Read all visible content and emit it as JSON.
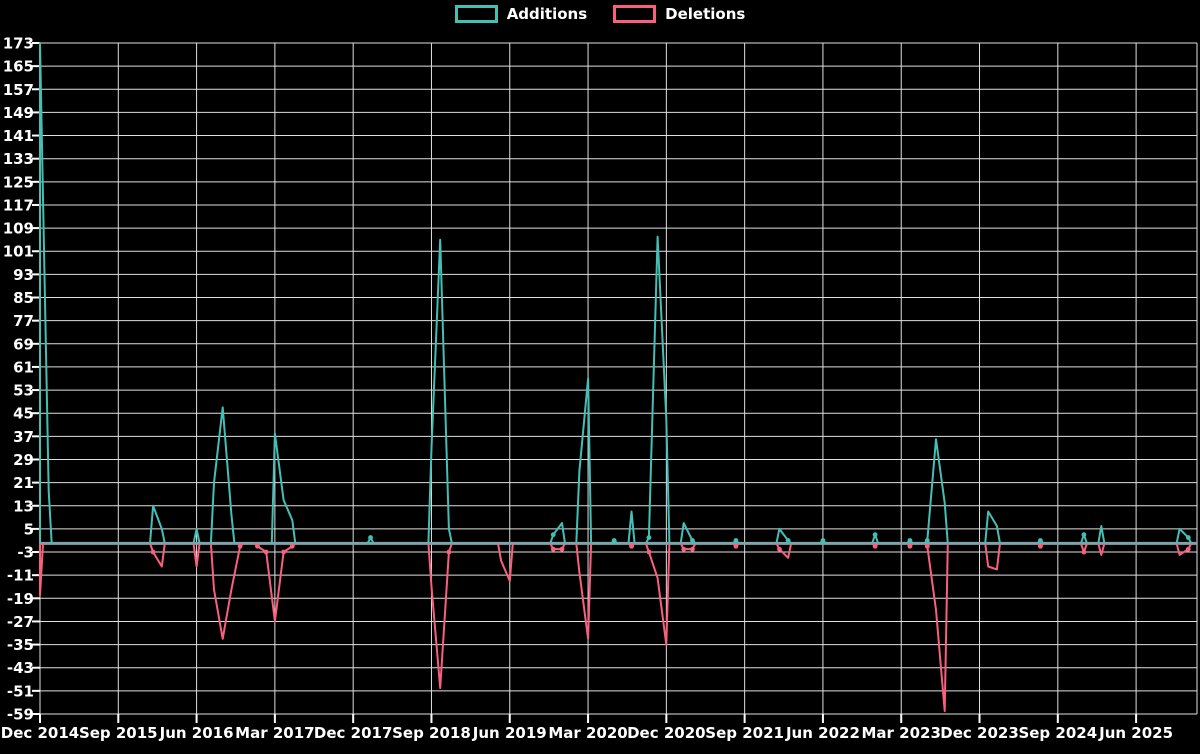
{
  "chart_data": {
    "type": "line",
    "title": "",
    "legend_position": "top-center",
    "grid": true,
    "background": "#000000",
    "grid_color": "#ffffff",
    "baseline_color": "#7FA3AB",
    "x_axis": {
      "unit": "month",
      "start": "2014-12",
      "end": "2026-01",
      "total_months": 133,
      "tick_interval_months": 9,
      "tick_labels": [
        "Dec 2014",
        "Sep 2015",
        "Jun 2016",
        "Mar 2017",
        "Dec 2017",
        "Sep 2018",
        "Jun 2019",
        "Mar 2020",
        "Dec 2020",
        "Sep 2021",
        "Jun 2022",
        "Mar 2023",
        "Dec 2023",
        "Sep 2024",
        "Jun 2025"
      ]
    },
    "y_axis": {
      "min": -59,
      "max": 173,
      "tick_step": 8,
      "tick_labels": [
        173,
        165,
        157,
        149,
        141,
        133,
        125,
        117,
        109,
        101,
        93,
        85,
        77,
        69,
        61,
        53,
        45,
        37,
        29,
        21,
        13,
        5,
        -3,
        -11,
        -19,
        -27,
        -35,
        -43,
        -51,
        -59
      ]
    },
    "series": [
      {
        "name": "Additions",
        "color": "#44BFB6",
        "points": [
          [
            "2014-12",
            173
          ],
          [
            "2015-01",
            18
          ],
          [
            "2016-01",
            13
          ],
          [
            "2016-02",
            5
          ],
          [
            "2016-06",
            5
          ],
          [
            "2016-08",
            21
          ],
          [
            "2016-09",
            47
          ],
          [
            "2016-10",
            10
          ],
          [
            "2017-03",
            38
          ],
          [
            "2017-04",
            15
          ],
          [
            "2017-05",
            8
          ],
          [
            "2018-02",
            2
          ],
          [
            "2018-09",
            33
          ],
          [
            "2018-10",
            105
          ],
          [
            "2018-11",
            5
          ],
          [
            "2019-11",
            3
          ],
          [
            "2019-12",
            7
          ],
          [
            "2020-02",
            25
          ],
          [
            "2020-03",
            57
          ],
          [
            "2020-06",
            1
          ],
          [
            "2020-08",
            11
          ],
          [
            "2020-10",
            2
          ],
          [
            "2020-11",
            106
          ],
          [
            "2020-12",
            43
          ],
          [
            "2021-02",
            7
          ],
          [
            "2021-03",
            1
          ],
          [
            "2021-08",
            1
          ],
          [
            "2022-01",
            5
          ],
          [
            "2022-02",
            1
          ],
          [
            "2022-06",
            1
          ],
          [
            "2022-12",
            3
          ],
          [
            "2023-04",
            1
          ],
          [
            "2023-06",
            1
          ],
          [
            "2023-07",
            36
          ],
          [
            "2023-08",
            14
          ],
          [
            "2024-01",
            11
          ],
          [
            "2024-02",
            6
          ],
          [
            "2024-07",
            1
          ],
          [
            "2024-12",
            3
          ],
          [
            "2025-02",
            6
          ],
          [
            "2025-11",
            5
          ],
          [
            "2025-12",
            2
          ]
        ]
      },
      {
        "name": "Deletions",
        "color": "#F8607E",
        "points": [
          [
            "2014-12",
            -18
          ],
          [
            "2016-01",
            -3
          ],
          [
            "2016-02",
            -8
          ],
          [
            "2016-06",
            -8
          ],
          [
            "2016-08",
            -16
          ],
          [
            "2016-09",
            -33
          ],
          [
            "2016-10",
            -16
          ],
          [
            "2016-11",
            -1
          ],
          [
            "2017-01",
            -1
          ],
          [
            "2017-02",
            -3
          ],
          [
            "2017-03",
            -27
          ],
          [
            "2017-04",
            -3
          ],
          [
            "2017-05",
            -1
          ],
          [
            "2018-09",
            -15
          ],
          [
            "2018-10",
            -50
          ],
          [
            "2018-11",
            -3
          ],
          [
            "2019-05",
            -6
          ],
          [
            "2019-06",
            -13
          ],
          [
            "2019-11",
            -2
          ],
          [
            "2019-12",
            -2
          ],
          [
            "2020-02",
            -10
          ],
          [
            "2020-03",
            -33
          ],
          [
            "2020-08",
            -1
          ],
          [
            "2020-10",
            -3
          ],
          [
            "2020-11",
            -12
          ],
          [
            "2020-12",
            -35
          ],
          [
            "2021-02",
            -2
          ],
          [
            "2021-03",
            -2
          ],
          [
            "2021-08",
            -1
          ],
          [
            "2022-01",
            -2
          ],
          [
            "2022-02",
            -5
          ],
          [
            "2022-12",
            -1
          ],
          [
            "2023-04",
            -1
          ],
          [
            "2023-06",
            -1
          ],
          [
            "2023-07",
            -23
          ],
          [
            "2023-08",
            -58
          ],
          [
            "2024-01",
            -8
          ],
          [
            "2024-02",
            -9
          ],
          [
            "2024-07",
            -1
          ],
          [
            "2024-12",
            -3
          ],
          [
            "2025-02",
            -4
          ],
          [
            "2025-11",
            -4
          ],
          [
            "2025-12",
            -2
          ]
        ]
      }
    ]
  }
}
